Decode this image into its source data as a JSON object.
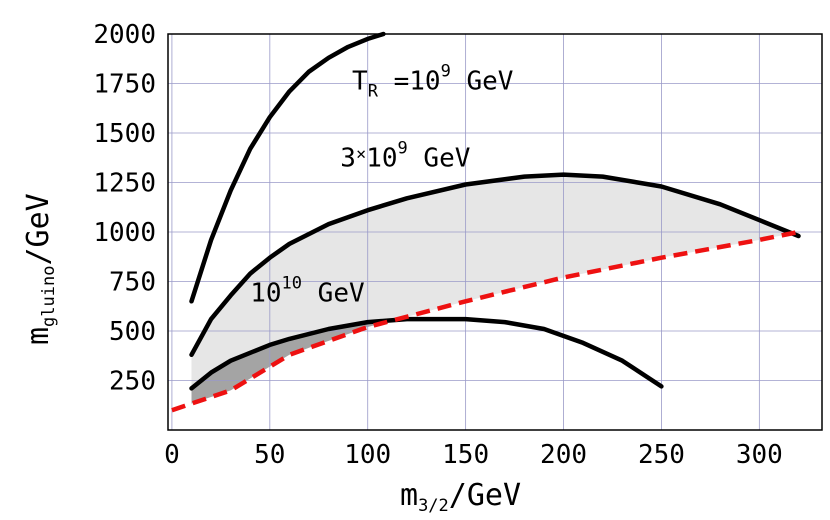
{
  "chart_data": {
    "type": "line",
    "title": "",
    "xlabel": {
      "main": "m",
      "sub": "3/2",
      "unit": "/GeV"
    },
    "ylabel": {
      "main": "m",
      "sub": "gluino",
      "unit": "/GeV"
    },
    "xlim": [
      -2,
      332
    ],
    "ylim": [
      0,
      2000
    ],
    "xticks": [
      0,
      50,
      100,
      150,
      200,
      250,
      300
    ],
    "yticks": [
      250,
      500,
      750,
      1000,
      1250,
      1500,
      1750,
      2000
    ],
    "xtick_labels": [
      "0",
      "50",
      "100",
      "150",
      "200",
      "250",
      "300"
    ],
    "ytick_labels": [
      "250",
      "500",
      "750",
      "1000",
      "1250",
      "1500",
      "1750",
      "2000"
    ],
    "grid": true,
    "colors": {
      "background": "#ffffff",
      "frame": "#000000",
      "grid": "#9a9ac8",
      "curve": "#000000",
      "boundary": "#ee1111",
      "light_region": "#e6e6e6",
      "dark_region": "#a4a4a4"
    },
    "series": [
      {
        "style": "solid-black",
        "x": [
          10,
          20,
          30,
          40,
          50,
          60,
          70,
          80,
          90,
          100,
          108
        ],
        "y": [
          650,
          960,
          1210,
          1420,
          1580,
          1710,
          1810,
          1880,
          1935,
          1975,
          2000
        ]
      },
      {
        "style": "solid-black",
        "x": [
          10,
          20,
          30,
          40,
          50,
          60,
          80,
          100,
          120,
          150,
          180,
          200,
          220,
          250,
          280,
          300,
          320
        ],
        "y": [
          380,
          560,
          680,
          790,
          870,
          940,
          1040,
          1110,
          1170,
          1240,
          1280,
          1290,
          1280,
          1230,
          1140,
          1060,
          980
        ]
      },
      {
        "style": "solid-black",
        "x": [
          10,
          20,
          30,
          40,
          50,
          60,
          80,
          100,
          120,
          150,
          170,
          190,
          210,
          230,
          250
        ],
        "y": [
          210,
          290,
          350,
          390,
          430,
          460,
          510,
          545,
          560,
          560,
          545,
          510,
          440,
          350,
          220
        ]
      },
      {
        "style": "dashed-red",
        "x": [
          0,
          30,
          60,
          100,
          150,
          200,
          250,
          300,
          320
        ],
        "y": [
          100,
          200,
          380,
          520,
          650,
          770,
          870,
          960,
          1000
        ]
      }
    ],
    "annotations": [
      {
        "parts": [
          "T",
          "R",
          " =10",
          "9",
          "  GeV"
        ],
        "x": 92,
        "y": 1720
      },
      {
        "parts": [
          "3",
          "×",
          "10",
          "9",
          "  GeV"
        ],
        "x": 86,
        "y": 1330
      },
      {
        "parts": [
          "10",
          "10",
          "  GeV"
        ],
        "x": 40,
        "y": 650
      }
    ]
  }
}
